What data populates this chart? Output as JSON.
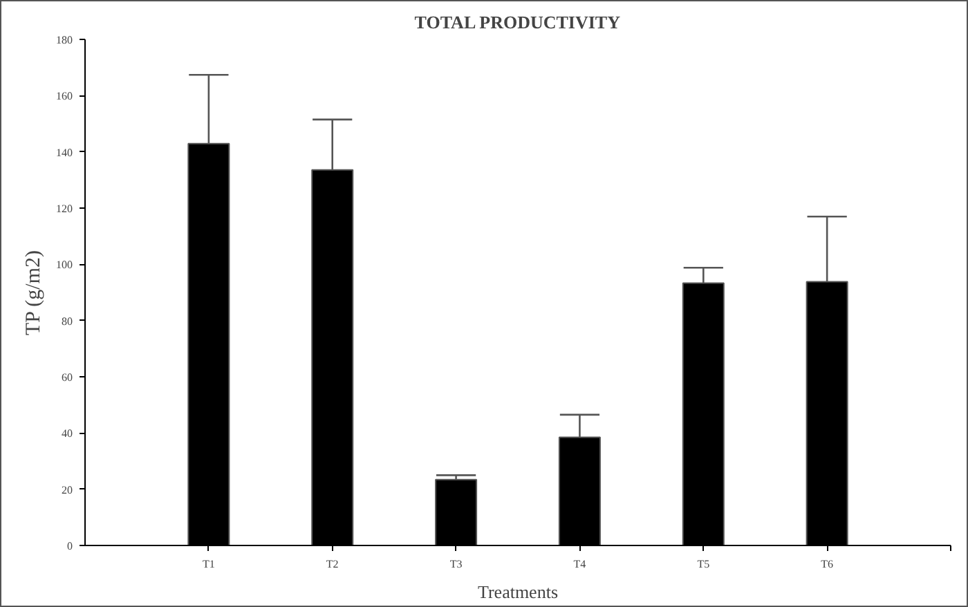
{
  "chart_data": {
    "type": "bar",
    "title": "TOTAL PRODUCTIVITY",
    "xlabel": "Treatments",
    "ylabel": "TP (g/m2)",
    "categories": [
      "T1",
      "T2",
      "T3",
      "T4",
      "T5",
      "T6"
    ],
    "values": [
      142.9,
      133.6,
      23.4,
      38.5,
      93.3,
      93.8
    ],
    "errors": [
      [
        142.9,
        167.4
      ],
      [
        133.6,
        151.5
      ],
      [
        23.4,
        25.0
      ],
      [
        38.5,
        46.5
      ],
      [
        93.3,
        98.8
      ],
      [
        93.8,
        117.0
      ]
    ],
    "color": "#000000",
    "ylim": [
      0,
      180
    ],
    "yticks": [
      0,
      20,
      40,
      60,
      80,
      100,
      120,
      140,
      160,
      180
    ],
    "grid": false
  }
}
